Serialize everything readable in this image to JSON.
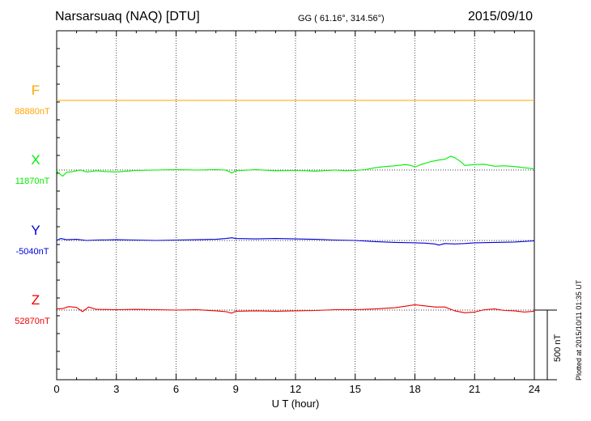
{
  "header": {
    "station": "Narsarsuaq (NAQ)  [DTU]",
    "coords": "GG ( 61.16°, 314.56°)",
    "date": "2015/09/10",
    "credit": "Plotted at 2015/10/11 01:35 UT"
  },
  "chart_data": {
    "type": "line",
    "xlabel": "U T (hour)",
    "xlim": [
      0,
      24
    ],
    "xticks": [
      0,
      3,
      6,
      9,
      12,
      15,
      18,
      21,
      24
    ],
    "scale_bar": {
      "label": "500 nT",
      "value_nT": 500
    },
    "series": [
      {
        "name": "F",
        "color": "#ffa500",
        "baseline_label": "88880nT",
        "baseline_nT": 88880,
        "points": [
          [
            0,
            0
          ],
          [
            24,
            0
          ]
        ]
      },
      {
        "name": "X",
        "color": "#00ee00",
        "baseline_label": "11870nT",
        "baseline_nT": 11870,
        "points": [
          [
            0,
            -5
          ],
          [
            0.1,
            -40
          ],
          [
            0.3,
            -80
          ],
          [
            0.5,
            -30
          ],
          [
            0.8,
            -20
          ],
          [
            1.2,
            0
          ],
          [
            1.5,
            -25
          ],
          [
            2,
            -10
          ],
          [
            2.5,
            -20
          ],
          [
            3,
            -25
          ],
          [
            3.5,
            -15
          ],
          [
            4,
            -5
          ],
          [
            5,
            0
          ],
          [
            6,
            5
          ],
          [
            7,
            0
          ],
          [
            8,
            5
          ],
          [
            8.5,
            0
          ],
          [
            8.8,
            -40
          ],
          [
            9,
            -10
          ],
          [
            9.3,
            -5
          ],
          [
            10,
            5
          ],
          [
            11,
            -10
          ],
          [
            12,
            -5
          ],
          [
            13,
            -15
          ],
          [
            14,
            0
          ],
          [
            14.5,
            -10
          ],
          [
            15,
            -5
          ],
          [
            15.5,
            5
          ],
          [
            16,
            30
          ],
          [
            16.5,
            45
          ],
          [
            17,
            55
          ],
          [
            17.5,
            70
          ],
          [
            17.8,
            60
          ],
          [
            18,
            40
          ],
          [
            18.3,
            70
          ],
          [
            18.8,
            110
          ],
          [
            19.2,
            130
          ],
          [
            19.5,
            140
          ],
          [
            19.8,
            180
          ],
          [
            20,
            160
          ],
          [
            20.3,
            110
          ],
          [
            20.5,
            60
          ],
          [
            21,
            70
          ],
          [
            21.5,
            75
          ],
          [
            22,
            50
          ],
          [
            22.5,
            55
          ],
          [
            23,
            45
          ],
          [
            23.5,
            30
          ],
          [
            24,
            15
          ]
        ]
      },
      {
        "name": "Y",
        "color": "#0000dd",
        "baseline_label": "-5040nT",
        "baseline_nT": -5040,
        "points": [
          [
            0,
            0
          ],
          [
            0.2,
            25
          ],
          [
            0.5,
            10
          ],
          [
            1,
            15
          ],
          [
            1.5,
            0
          ],
          [
            2,
            5
          ],
          [
            3,
            10
          ],
          [
            4,
            5
          ],
          [
            5,
            0
          ],
          [
            6,
            5
          ],
          [
            7,
            10
          ],
          [
            8,
            15
          ],
          [
            8.5,
            25
          ],
          [
            8.8,
            35
          ],
          [
            9,
            25
          ],
          [
            10,
            20
          ],
          [
            11,
            25
          ],
          [
            12,
            20
          ],
          [
            13,
            15
          ],
          [
            14,
            5
          ],
          [
            15,
            0
          ],
          [
            16,
            -15
          ],
          [
            17,
            -25
          ],
          [
            18,
            -30
          ],
          [
            18.5,
            -35
          ],
          [
            19,
            -45
          ],
          [
            19.2,
            -60
          ],
          [
            19.5,
            -40
          ],
          [
            20,
            -45
          ],
          [
            20.5,
            -40
          ],
          [
            21,
            -30
          ],
          [
            22,
            -25
          ],
          [
            23,
            -20
          ],
          [
            24,
            -5
          ]
        ]
      },
      {
        "name": "Z",
        "color": "#ee0000",
        "baseline_label": "52870nT",
        "baseline_nT": 52870,
        "points": [
          [
            0,
            15
          ],
          [
            0.3,
            20
          ],
          [
            0.6,
            45
          ],
          [
            1,
            35
          ],
          [
            1.3,
            -20
          ],
          [
            1.6,
            40
          ],
          [
            2,
            10
          ],
          [
            3,
            5
          ],
          [
            4,
            10
          ],
          [
            5,
            5
          ],
          [
            6,
            0
          ],
          [
            7,
            5
          ],
          [
            8,
            -10
          ],
          [
            8.5,
            -20
          ],
          [
            8.8,
            -40
          ],
          [
            9,
            -15
          ],
          [
            10,
            -10
          ],
          [
            11,
            -15
          ],
          [
            12,
            -10
          ],
          [
            13,
            -5
          ],
          [
            14,
            5
          ],
          [
            15,
            5
          ],
          [
            16,
            15
          ],
          [
            17,
            30
          ],
          [
            17.5,
            50
          ],
          [
            18,
            70
          ],
          [
            18.5,
            55
          ],
          [
            19,
            40
          ],
          [
            19.5,
            40
          ],
          [
            20,
            -10
          ],
          [
            20.5,
            -35
          ],
          [
            21,
            -25
          ],
          [
            21.5,
            5
          ],
          [
            22,
            15
          ],
          [
            22.5,
            -5
          ],
          [
            23,
            -10
          ],
          [
            23.5,
            -25
          ],
          [
            24,
            -15
          ]
        ]
      }
    ]
  }
}
